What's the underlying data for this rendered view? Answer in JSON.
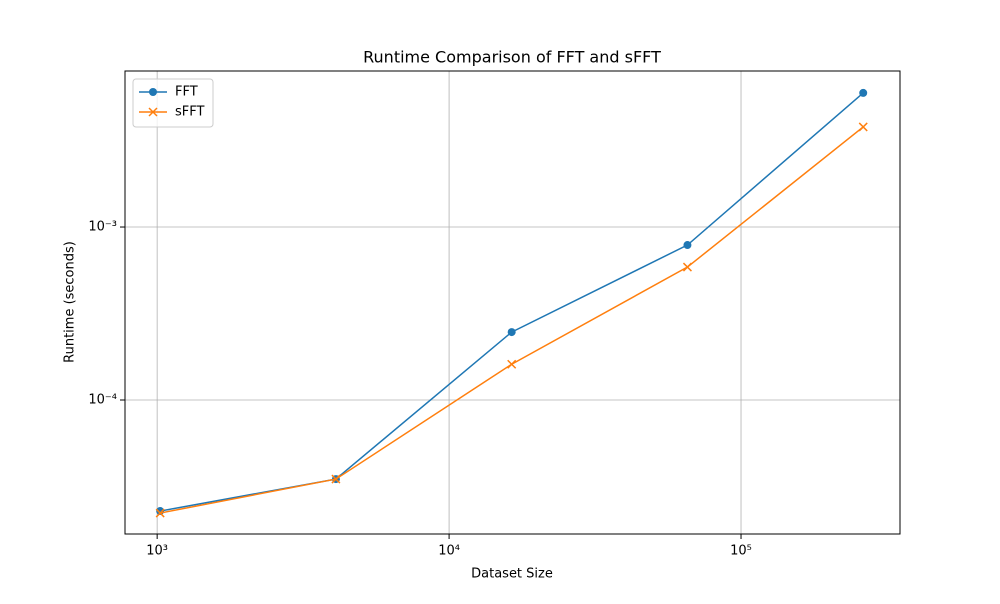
{
  "chart_data": {
    "type": "line",
    "title": "Runtime Comparison of FFT and sFFT",
    "x_label": "Dataset Size",
    "y_label": "Runtime (seconds)",
    "x": [
      1024,
      4096,
      16384,
      65536,
      262144
    ],
    "series": [
      {
        "name": "FFT",
        "color": "#1f77b4",
        "marker": "o",
        "values": [
          2.28e-05,
          3.49e-05,
          0.000247,
          0.000787,
          0.00596
        ]
      },
      {
        "name": "sFFT",
        "color": "#ff7f0e",
        "marker": "x",
        "values": [
          2.22e-05,
          3.49e-05,
          0.000161,
          0.000587,
          0.00379
        ]
      }
    ],
    "xscale": "log",
    "yscale": "log",
    "xlim": [
      776,
      350400
    ],
    "ylim": [
      1.68e-05,
      0.00798
    ],
    "xticks": [
      {
        "value": 1000,
        "label": "10³"
      },
      {
        "value": 10000,
        "label": "10⁴"
      },
      {
        "value": 100000,
        "label": "10⁵"
      }
    ],
    "yticks": [
      {
        "value": 0.0001,
        "label": "10⁻⁴"
      },
      {
        "value": 0.001,
        "label": "10⁻³"
      }
    ],
    "grid": true,
    "legend": "upper left"
  }
}
